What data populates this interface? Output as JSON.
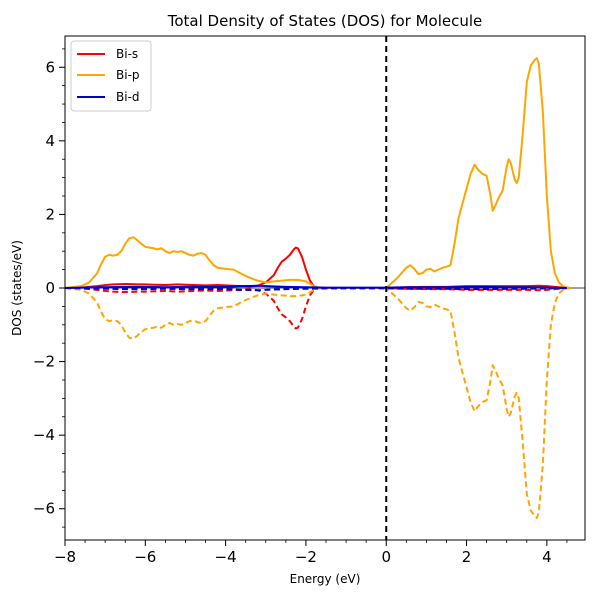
{
  "chart_data": {
    "type": "line",
    "title": "Total Density of States (DOS) for Molecule",
    "xlabel": "Energy (eV)",
    "ylabel": "DOS (states/eV)",
    "xlim": [
      -8,
      4.95
    ],
    "ylim": [
      -6.85,
      6.85
    ],
    "xticks": [
      -8,
      -6,
      -4,
      -2,
      0,
      2,
      4
    ],
    "yticks": [
      -6,
      -4,
      -2,
      0,
      2,
      4,
      6
    ],
    "fermi_level": 0,
    "legend": {
      "placement": "top-left",
      "entries": [
        "Bi-s",
        "Bi-p",
        "Bi-d"
      ]
    },
    "grid": false,
    "spin_down_dashed_mirror": true,
    "series": [
      {
        "name": "Bi-s",
        "color": "#ff0000",
        "x": [
          -8.0,
          -7.5,
          -7.2,
          -7.0,
          -6.8,
          -6.5,
          -6.2,
          -6.0,
          -5.8,
          -5.5,
          -5.2,
          -5.0,
          -4.8,
          -4.5,
          -4.2,
          -4.0,
          -3.8,
          -3.6,
          -3.4,
          -3.2,
          -3.0,
          -2.8,
          -2.7,
          -2.6,
          -2.5,
          -2.4,
          -2.3,
          -2.25,
          -2.2,
          -2.1,
          -2.0,
          -1.9,
          -1.8,
          -1.7,
          -1.6,
          -1.5,
          -1.0,
          -0.5,
          0.0,
          0.5,
          1.0,
          1.5,
          2.0,
          2.5,
          3.0,
          3.5,
          3.8,
          4.0,
          4.3,
          4.6
        ],
        "y": [
          0.0,
          0.02,
          0.05,
          0.08,
          0.1,
          0.11,
          0.1,
          0.1,
          0.09,
          0.08,
          0.1,
          0.09,
          0.08,
          0.07,
          0.08,
          0.07,
          0.06,
          0.05,
          0.04,
          0.06,
          0.15,
          0.35,
          0.55,
          0.72,
          0.8,
          0.9,
          1.05,
          1.1,
          1.08,
          0.85,
          0.5,
          0.2,
          0.05,
          0.01,
          0.0,
          0.0,
          0.0,
          0.0,
          0.0,
          0.02,
          0.03,
          0.03,
          0.05,
          0.05,
          0.05,
          0.05,
          0.06,
          0.05,
          0.02,
          0.0
        ]
      },
      {
        "name": "Bi-p",
        "color": "#ffa500",
        "x": [
          -8.0,
          -7.6,
          -7.4,
          -7.2,
          -7.1,
          -7.0,
          -6.9,
          -6.8,
          -6.7,
          -6.6,
          -6.5,
          -6.4,
          -6.3,
          -6.2,
          -6.1,
          -6.0,
          -5.9,
          -5.8,
          -5.7,
          -5.6,
          -5.5,
          -5.4,
          -5.3,
          -5.2,
          -5.1,
          -5.0,
          -4.9,
          -4.8,
          -4.7,
          -4.6,
          -4.5,
          -4.4,
          -4.3,
          -4.2,
          -4.0,
          -3.8,
          -3.6,
          -3.4,
          -3.2,
          -3.0,
          -2.8,
          -2.6,
          -2.4,
          -2.2,
          -2.0,
          -1.8,
          -1.7,
          -1.6,
          -1.5,
          -1.0,
          -0.5,
          0.0,
          0.1,
          0.3,
          0.5,
          0.6,
          0.7,
          0.8,
          0.9,
          1.0,
          1.1,
          1.2,
          1.3,
          1.4,
          1.5,
          1.6,
          1.7,
          1.8,
          1.9,
          2.0,
          2.1,
          2.2,
          2.3,
          2.4,
          2.5,
          2.6,
          2.65,
          2.7,
          2.8,
          2.9,
          3.0,
          3.05,
          3.1,
          3.2,
          3.25,
          3.3,
          3.4,
          3.5,
          3.6,
          3.7,
          3.75,
          3.8,
          3.9,
          4.0,
          4.1,
          4.2,
          4.3,
          4.4,
          4.5,
          4.6
        ],
        "y": [
          0.0,
          0.05,
          0.15,
          0.4,
          0.65,
          0.85,
          0.9,
          0.88,
          0.9,
          1.0,
          1.2,
          1.35,
          1.38,
          1.3,
          1.2,
          1.12,
          1.1,
          1.08,
          1.05,
          1.08,
          1.0,
          0.95,
          1.0,
          0.98,
          1.0,
          0.95,
          0.9,
          0.88,
          0.93,
          0.95,
          0.9,
          0.75,
          0.62,
          0.55,
          0.52,
          0.5,
          0.38,
          0.28,
          0.2,
          0.15,
          0.18,
          0.2,
          0.22,
          0.22,
          0.18,
          0.05,
          0.02,
          0.0,
          0.0,
          0.0,
          0.0,
          0.0,
          0.1,
          0.3,
          0.55,
          0.62,
          0.52,
          0.38,
          0.4,
          0.5,
          0.52,
          0.45,
          0.5,
          0.55,
          0.58,
          0.62,
          1.2,
          1.9,
          2.3,
          2.7,
          3.1,
          3.35,
          3.2,
          3.1,
          3.05,
          2.5,
          2.1,
          2.2,
          2.45,
          2.65,
          3.3,
          3.5,
          3.4,
          2.95,
          2.85,
          3.0,
          4.2,
          5.6,
          6.05,
          6.2,
          6.25,
          6.1,
          4.8,
          2.5,
          1.0,
          0.4,
          0.15,
          0.05,
          0.01,
          0.0
        ]
      },
      {
        "name": "Bi-d",
        "color": "#0000cd",
        "x": [
          -8.0,
          -7.0,
          -6.5,
          -6.0,
          -5.5,
          -5.0,
          -4.5,
          -4.0,
          -3.6,
          -3.2,
          -3.0,
          -2.5,
          -2.0,
          -1.5,
          -1.0,
          -0.5,
          0.0,
          0.5,
          1.0,
          1.5,
          2.0,
          2.5,
          3.0,
          3.5,
          4.0,
          4.5
        ],
        "y": [
          0.0,
          0.02,
          0.03,
          0.03,
          0.02,
          0.03,
          0.03,
          0.03,
          0.05,
          0.06,
          0.05,
          0.03,
          0.02,
          0.01,
          0.01,
          0.01,
          0.01,
          0.02,
          0.02,
          0.02,
          0.03,
          0.03,
          0.02,
          0.02,
          0.01,
          0.0
        ]
      }
    ]
  }
}
